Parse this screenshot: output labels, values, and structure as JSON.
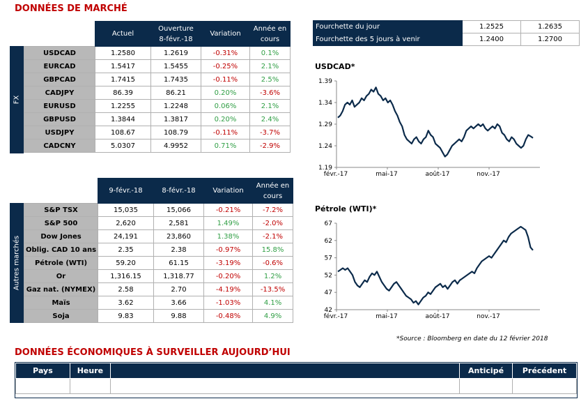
{
  "market_title": "DONNÉES DE MARCHÉ",
  "fx": {
    "side_label": "FX",
    "headers": [
      "Actuel",
      "Ouverture\n8-févr.-18",
      "Variation",
      "Année en\ncours"
    ],
    "rows": [
      {
        "label": "USDCAD",
        "current": "1.2580",
        "open": "1.2619",
        "change": "-0.31%",
        "ytd": "0.1%"
      },
      {
        "label": "EURCAD",
        "current": "1.5417",
        "open": "1.5455",
        "change": "-0.25%",
        "ytd": "2.1%"
      },
      {
        "label": "GBPCAD",
        "current": "1.7415",
        "open": "1.7435",
        "change": "-0.11%",
        "ytd": "2.5%"
      },
      {
        "label": "CADJPY",
        "current": "86.39",
        "open": "86.21",
        "change": "0.20%",
        "ytd": "-3.6%"
      },
      {
        "label": "EURUSD",
        "current": "1.2255",
        "open": "1.2248",
        "change": "0.06%",
        "ytd": "2.1%"
      },
      {
        "label": "GBPUSD",
        "current": "1.3844",
        "open": "1.3817",
        "change": "0.20%",
        "ytd": "2.4%"
      },
      {
        "label": "USDJPY",
        "current": "108.67",
        "open": "108.79",
        "change": "-0.11%",
        "ytd": "-3.7%"
      },
      {
        "label": "CADCNY",
        "current": "5.0307",
        "open": "4.9952",
        "change": "0.71%",
        "ytd": "-2.9%"
      }
    ]
  },
  "other": {
    "side_label": "Autres marchés",
    "headers": [
      "9-févr.-18",
      "8-févr.-18",
      "Variation",
      "Année en\ncours"
    ],
    "rows": [
      {
        "label": "S&P TSX",
        "current": "15,035",
        "open": "15,066",
        "change": "-0.21%",
        "ytd": "-7.2%"
      },
      {
        "label": "S&P 500",
        "current": "2,620",
        "open": "2,581",
        "change": "1.49%",
        "ytd": "-2.0%"
      },
      {
        "label": "Dow Jones",
        "current": "24,191",
        "open": "23,860",
        "change": "1.38%",
        "ytd": "-2.1%"
      },
      {
        "label": "Oblig. CAD 10 ans",
        "current": "2.35",
        "open": "2.38",
        "change": "-0.97%",
        "ytd": "15.8%"
      },
      {
        "label": "Pétrole (WTI)",
        "current": "59.20",
        "open": "61.15",
        "change": "-3.19%",
        "ytd": "-0.6%"
      },
      {
        "label": "Or",
        "current": "1,316.15",
        "open": "1,318.77",
        "change": "-0.20%",
        "ytd": "1.2%"
      },
      {
        "label": "Gaz nat. (NYMEX)",
        "current": "2.58",
        "open": "2.70",
        "change": "-4.19%",
        "ytd": "-13.5%"
      },
      {
        "label": "Maïs",
        "current": "3.62",
        "open": "3.66",
        "change": "-1.03%",
        "ytd": "4.1%"
      },
      {
        "label": "Soja",
        "current": "9.83",
        "open": "9.88",
        "change": "-0.48%",
        "ytd": "4.9%"
      }
    ]
  },
  "ranges": [
    {
      "label": "Fourchette du jour",
      "low": "1.2525",
      "high": "1.2635"
    },
    {
      "label": "Fourchette des 5 jours à venir",
      "low": "1.2400",
      "high": "1.2700"
    }
  ],
  "source_note": "*Source : Bloomberg en date du  12 février 2018",
  "eco_title": "DONNÉES ÉCONOMIQUES À SURVEILLER AUJOURD’HUI",
  "eco_headers": [
    "Pays",
    "Heure",
    "",
    "Anticipé",
    "Précédent"
  ],
  "chart_data": [
    {
      "type": "line",
      "title": "USDCAD*",
      "x_tick_labels": [
        "févr.-17",
        "mai-17",
        "août-17",
        "nov.-17"
      ],
      "y_ticks": [
        1.19,
        1.24,
        1.29,
        1.34,
        1.39
      ],
      "ylim": [
        1.19,
        1.39
      ],
      "color": "#0b2a4a",
      "x_range": [
        "févr.-17",
        "févr.-18"
      ],
      "values": [
        1.305,
        1.31,
        1.32,
        1.335,
        1.34,
        1.335,
        1.345,
        1.33,
        1.335,
        1.34,
        1.35,
        1.345,
        1.355,
        1.36,
        1.37,
        1.365,
        1.375,
        1.36,
        1.355,
        1.345,
        1.35,
        1.34,
        1.345,
        1.335,
        1.32,
        1.31,
        1.295,
        1.285,
        1.265,
        1.255,
        1.25,
        1.245,
        1.255,
        1.26,
        1.25,
        1.245,
        1.255,
        1.26,
        1.275,
        1.265,
        1.26,
        1.245,
        1.24,
        1.235,
        1.225,
        1.215,
        1.22,
        1.23,
        1.24,
        1.245,
        1.25,
        1.255,
        1.25,
        1.26,
        1.275,
        1.28,
        1.285,
        1.28,
        1.285,
        1.29,
        1.285,
        1.29,
        1.28,
        1.275,
        1.28,
        1.285,
        1.28,
        1.29,
        1.285,
        1.27,
        1.265,
        1.255,
        1.25,
        1.26,
        1.255,
        1.245,
        1.24,
        1.235,
        1.24,
        1.255,
        1.265,
        1.262,
        1.258
      ]
    },
    {
      "type": "line",
      "title": "Pétrole (WTI)*",
      "x_tick_labels": [
        "févr.-17",
        "mai-17",
        "août-17",
        "nov.-17"
      ],
      "y_ticks": [
        42,
        47,
        52,
        57,
        62,
        67
      ],
      "ylim": [
        42,
        67
      ],
      "color": "#0b2a4a",
      "x_range": [
        "févr.-17",
        "févr.-18"
      ],
      "values": [
        53,
        53.5,
        54,
        53.5,
        54,
        53,
        52,
        50,
        49,
        48.5,
        49.5,
        50.5,
        50,
        51.5,
        52.5,
        52,
        53,
        51.5,
        50,
        49,
        48,
        47.5,
        48.5,
        49.5,
        50,
        49,
        48,
        47,
        46,
        45.5,
        45,
        44,
        44.5,
        43.5,
        44.5,
        45.5,
        46,
        47,
        46.5,
        47.5,
        48.5,
        49,
        49.5,
        48.5,
        49,
        48,
        49,
        50,
        50.5,
        49.5,
        50.5,
        51,
        51.5,
        52,
        52.5,
        53,
        52.5,
        54,
        55,
        56,
        56.5,
        57,
        57.5,
        57,
        58,
        59,
        60,
        61,
        62,
        61.5,
        63,
        64,
        64.5,
        65,
        65.5,
        66,
        65.5,
        65,
        63,
        60,
        59.2
      ]
    }
  ]
}
